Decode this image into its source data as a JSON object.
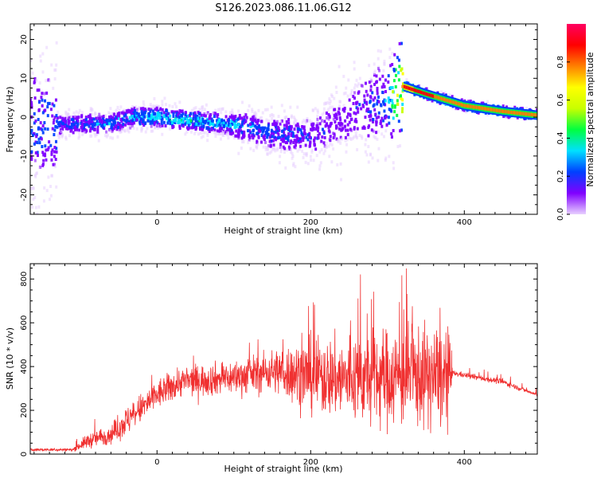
{
  "title": "S126.2023.086.11.06.G12",
  "chart_data": [
    {
      "type": "heatmap",
      "xlabel": "Height of straight line (km)",
      "ylabel": "Frequency (Hz)",
      "xlim": [
        -165,
        495
      ],
      "ylim": [
        -25,
        24
      ],
      "xticks": [
        0,
        200,
        400
      ],
      "yticks": [
        -20,
        -10,
        0,
        10,
        20
      ],
      "colorbar": {
        "label": "Normalized spectral amplitude",
        "range": [
          0,
          1
        ],
        "ticks": [
          "0.0",
          "0.2",
          "0.4",
          "0.6",
          "0.8"
        ],
        "colormap": [
          "#e8d0ff",
          "#8000ff",
          "#0040ff",
          "#00e0ff",
          "#00ff40",
          "#c8ff00",
          "#ffff00",
          "#ff8000",
          "#ff0000",
          "#ff0060"
        ]
      },
      "ridge": {
        "x": [
          -130,
          -60,
          -30,
          0,
          50,
          100,
          150,
          200,
          250,
          300,
          320,
          350,
          400,
          450,
          495
        ],
        "frequency": [
          -2,
          -1.5,
          0,
          0,
          -1,
          -2,
          -4,
          -5,
          0,
          5,
          8,
          6,
          3,
          1.5,
          0.5
        ],
        "peak_amplitude": [
          0.3,
          0.35,
          0.4,
          0.45,
          0.45,
          0.4,
          0.3,
          0.25,
          0.2,
          0.35,
          0.95,
          0.9,
          0.85,
          0.85,
          0.8
        ]
      }
    },
    {
      "type": "line",
      "xlabel": "Height of straight line (km)",
      "ylabel": "SNR (10 * v/v)",
      "xlim": [
        -165,
        495
      ],
      "ylim": [
        0,
        870
      ],
      "xticks": [
        0,
        200,
        400
      ],
      "yticks": [
        0,
        200,
        400,
        600,
        800
      ],
      "color": "#f03030",
      "envelope": {
        "x": [
          -165,
          -110,
          -90,
          -60,
          -40,
          0,
          30,
          100,
          150,
          200,
          250,
          300,
          330,
          380,
          385,
          450,
          495
        ],
        "mean": [
          20,
          20,
          60,
          90,
          150,
          270,
          330,
          350,
          380,
          360,
          340,
          350,
          360,
          340,
          370,
          330,
          270
        ],
        "spread": [
          8,
          8,
          40,
          50,
          80,
          80,
          80,
          90,
          110,
          200,
          220,
          260,
          270,
          260,
          15,
          15,
          10
        ],
        "spike_max": [
          25,
          30,
          180,
          150,
          220,
          400,
          480,
          500,
          560,
          760,
          840,
          870,
          860,
          680,
          400,
          380,
          300
        ]
      }
    }
  ]
}
